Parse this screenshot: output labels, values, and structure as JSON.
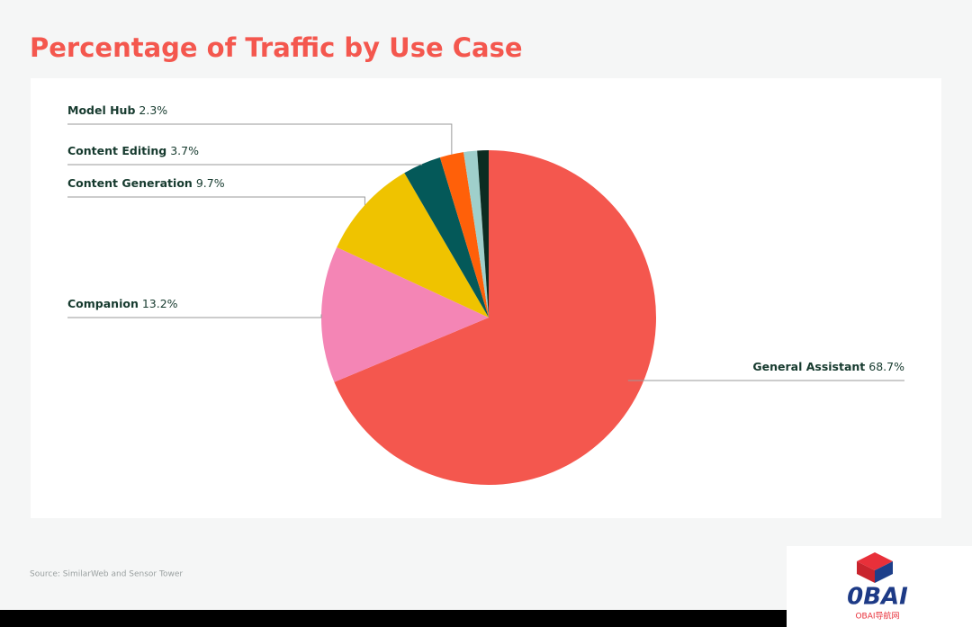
{
  "chart_data": {
    "type": "pie",
    "title": "Percentage of Traffic by Use Case",
    "categories": [
      "General Assistant",
      "Companion",
      "Content Generation",
      "Content Editing",
      "Model Hub",
      null,
      null
    ],
    "values": [
      68.7,
      13.2,
      9.7,
      3.7,
      2.3,
      1.3,
      1.1
    ],
    "value_labels": [
      "68.7%",
      "13.2%",
      "9.7%",
      "3.7%",
      "2.3%",
      null,
      null
    ],
    "colors": [
      "#f4574e",
      "#f485b5",
      "#efc300",
      "#045959",
      "#ff6009",
      "#9fcfcb",
      "#0c2c21"
    ],
    "source": "Source: SimilarWeb and Sensor Tower"
  },
  "watermark": {
    "logo": "0BAI",
    "caption": "OBAI导航网"
  }
}
